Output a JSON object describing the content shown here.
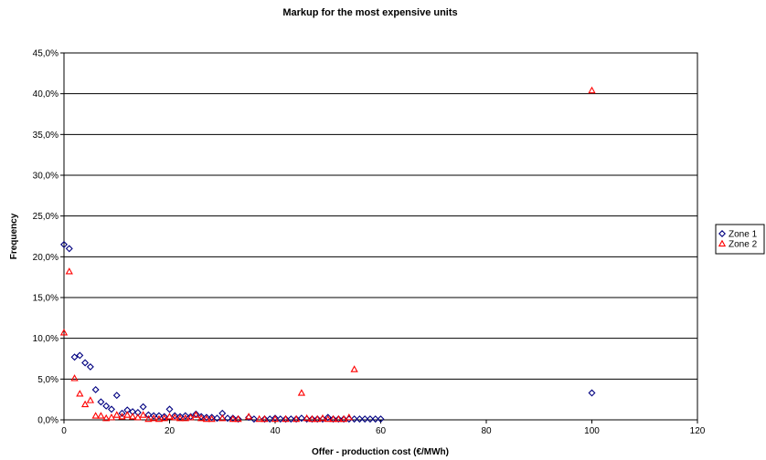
{
  "chart_data": {
    "type": "scatter",
    "title": "Markup for the most expensive units",
    "xlabel": "Offer - production cost (€/MWh)",
    "ylabel": "Frequency",
    "xlim": [
      0,
      120
    ],
    "ylim": [
      0,
      45
    ],
    "xticks": [
      0,
      20,
      40,
      60,
      80,
      100,
      120
    ],
    "yticks": [
      0,
      5,
      10,
      15,
      20,
      25,
      30,
      35,
      40,
      45
    ],
    "xtick_labels": [
      "0",
      "20",
      "40",
      "60",
      "80",
      "100",
      "120"
    ],
    "ytick_labels": [
      "0,0%",
      "5,0%",
      "10,0%",
      "15,0%",
      "20,0%",
      "25,0%",
      "30,0%",
      "35,0%",
      "40,0%",
      "45,0%"
    ],
    "y_unit": "percent",
    "grid": "horizontal",
    "legend_position": "right",
    "series": [
      {
        "name": "Zone 1",
        "marker": "diamond",
        "color": "#000080",
        "points": [
          [
            0,
            21.5
          ],
          [
            1,
            21.0
          ],
          [
            2,
            7.7
          ],
          [
            3,
            7.9
          ],
          [
            4,
            7.0
          ],
          [
            5,
            6.5
          ],
          [
            6,
            3.7
          ],
          [
            7,
            2.2
          ],
          [
            8,
            1.7
          ],
          [
            9,
            1.3
          ],
          [
            10,
            3.0
          ],
          [
            11,
            0.8
          ],
          [
            12,
            1.2
          ],
          [
            13,
            1.0
          ],
          [
            14,
            0.9
          ],
          [
            15,
            1.6
          ],
          [
            16,
            0.6
          ],
          [
            17,
            0.5
          ],
          [
            18,
            0.5
          ],
          [
            19,
            0.4
          ],
          [
            20,
            1.3
          ],
          [
            21,
            0.5
          ],
          [
            22,
            0.4
          ],
          [
            23,
            0.5
          ],
          [
            24,
            0.4
          ],
          [
            25,
            0.7
          ],
          [
            26,
            0.4
          ],
          [
            27,
            0.3
          ],
          [
            28,
            0.3
          ],
          [
            29,
            0.2
          ],
          [
            30,
            0.8
          ],
          [
            31,
            0.2
          ],
          [
            32,
            0.2
          ],
          [
            33,
            0.1
          ],
          [
            35,
            0.3
          ],
          [
            36,
            0.1
          ],
          [
            38,
            0.1
          ],
          [
            39,
            0.1
          ],
          [
            40,
            0.2
          ],
          [
            41,
            0.1
          ],
          [
            42,
            0.1
          ],
          [
            43,
            0.1
          ],
          [
            44,
            0.1
          ],
          [
            45,
            0.2
          ],
          [
            46,
            0.1
          ],
          [
            47,
            0.1
          ],
          [
            48,
            0.1
          ],
          [
            49,
            0.1
          ],
          [
            50,
            0.3
          ],
          [
            51,
            0.1
          ],
          [
            52,
            0.1
          ],
          [
            53,
            0.1
          ],
          [
            54,
            0.1
          ],
          [
            55,
            0.1
          ],
          [
            56,
            0.1
          ],
          [
            57,
            0.1
          ],
          [
            58,
            0.1
          ],
          [
            59,
            0.1
          ],
          [
            60,
            0.1
          ],
          [
            100,
            3.3
          ]
        ]
      },
      {
        "name": "Zone 2",
        "marker": "triangle",
        "color": "#FF0000",
        "points": [
          [
            0,
            10.7
          ],
          [
            1,
            18.2
          ],
          [
            2,
            5.1
          ],
          [
            3,
            3.2
          ],
          [
            4,
            1.9
          ],
          [
            5,
            2.4
          ],
          [
            6,
            0.5
          ],
          [
            7,
            0.5
          ],
          [
            8,
            0.2
          ],
          [
            9,
            0.3
          ],
          [
            10,
            0.6
          ],
          [
            11,
            0.4
          ],
          [
            12,
            0.6
          ],
          [
            13,
            0.4
          ],
          [
            14,
            0.3
          ],
          [
            15,
            0.6
          ],
          [
            16,
            0.1
          ],
          [
            17,
            0.2
          ],
          [
            18,
            0.1
          ],
          [
            19,
            0.2
          ],
          [
            20,
            0.4
          ],
          [
            21,
            0.3
          ],
          [
            22,
            0.2
          ],
          [
            23,
            0.2
          ],
          [
            24,
            0.3
          ],
          [
            25,
            0.6
          ],
          [
            26,
            0.2
          ],
          [
            27,
            0.1
          ],
          [
            28,
            0.1
          ],
          [
            30,
            0.2
          ],
          [
            32,
            0.1
          ],
          [
            33,
            0.1
          ],
          [
            35,
            0.4
          ],
          [
            37,
            0.1
          ],
          [
            38,
            0.1
          ],
          [
            40,
            0.1
          ],
          [
            42,
            0.1
          ],
          [
            44,
            0.1
          ],
          [
            45,
            3.3
          ],
          [
            46,
            0.2
          ],
          [
            47,
            0.1
          ],
          [
            48,
            0.1
          ],
          [
            49,
            0.2
          ],
          [
            50,
            0.1
          ],
          [
            51,
            0.1
          ],
          [
            52,
            0.1
          ],
          [
            53,
            0.1
          ],
          [
            54,
            0.3
          ],
          [
            55,
            6.2
          ],
          [
            100,
            40.4
          ]
        ]
      }
    ]
  }
}
